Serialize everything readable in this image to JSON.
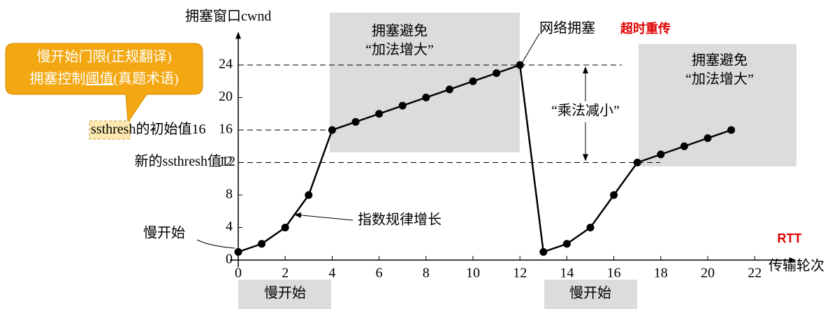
{
  "chart_data": {
    "type": "line",
    "y_label": "拥塞窗口cwnd",
    "x_label": "传输轮次",
    "x_unit": "RTT",
    "x": [
      0,
      1,
      2,
      3,
      4,
      5,
      6,
      7,
      8,
      9,
      10,
      11,
      12,
      13,
      14,
      15,
      16,
      17,
      18,
      19,
      20,
      21
    ],
    "values": [
      1,
      2,
      4,
      8,
      16,
      17,
      18,
      19,
      20,
      21,
      22,
      23,
      24,
      1,
      2,
      4,
      8,
      12,
      13,
      14,
      15,
      16
    ],
    "color": "#000000",
    "xlim": [
      0,
      23.5
    ],
    "ylim": [
      0,
      28
    ],
    "xticks": [
      0,
      2,
      4,
      6,
      8,
      10,
      12,
      14,
      16,
      18,
      20,
      22
    ],
    "yticks": [
      0,
      4,
      8,
      12,
      16,
      20,
      24
    ],
    "congestion_level": 24,
    "initial_ssthresh": {
      "value": 16,
      "label_parts": [
        "ssthresh",
        "的初始值16"
      ]
    },
    "new_ssthresh": {
      "value": 12,
      "label": "新的ssthresh值12"
    },
    "annotations": [
      "拥塞避免",
      "“加法增大”",
      "网络拥塞",
      "超时重传",
      "拥塞避免",
      "“加法增大”",
      "“乘法减小”",
      "指数规律增长",
      "慢开始",
      "慢开始",
      "慢开始"
    ],
    "callout": [
      "慢开始门限(正规翻译)",
      "拥塞控制",
      "阈值",
      "(真题术语)"
    ]
  }
}
